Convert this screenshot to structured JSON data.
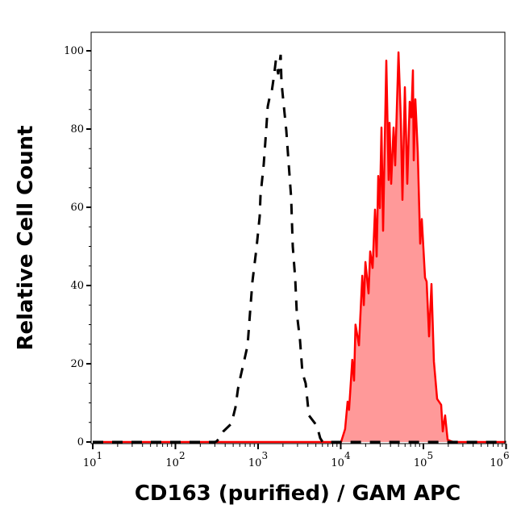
{
  "chart_data": {
    "type": "area",
    "title": "",
    "xlabel": "CD163 (purified) / GAM APC",
    "ylabel": "Relative Cell Count",
    "x_scale": "log",
    "xlim": [
      10,
      1000000
    ],
    "ylim": [
      0,
      105
    ],
    "x_ticks": [
      {
        "base": "10",
        "exp": "1"
      },
      {
        "base": "10",
        "exp": "2"
      },
      {
        "base": "10",
        "exp": "3"
      },
      {
        "base": "10",
        "exp": "4"
      },
      {
        "base": "10",
        "exp": "5"
      },
      {
        "base": "10",
        "exp": "6"
      }
    ],
    "y_ticks": [
      "0",
      "20",
      "40",
      "60",
      "80",
      "100"
    ],
    "grid": false,
    "series": [
      {
        "style": "dashed-line",
        "color": "#000000",
        "x": [
          10,
          300,
          318,
          380,
          476,
          533,
          571,
          610,
          682,
          747,
          798,
          855,
          955,
          1047,
          1070,
          1170,
          1253,
          1310,
          1371,
          1466,
          1567,
          1641,
          1754,
          1875,
          1918,
          2005,
          2193,
          2350,
          2512,
          2630,
          2812,
          2938,
          3214,
          3443,
          3767,
          4121,
          5152,
          5636,
          6026,
          7000,
          1000000
        ],
        "y": [
          0,
          0,
          0.2,
          2.7,
          4.7,
          8.9,
          13.6,
          16.5,
          21,
          24.7,
          33,
          41,
          49.5,
          57.7,
          63,
          71,
          79.6,
          85.8,
          87.8,
          89.7,
          94,
          97.5,
          94,
          99,
          92,
          87.8,
          79.6,
          71,
          62.5,
          50,
          41.9,
          33,
          26,
          17.7,
          15,
          6.8,
          4.1,
          1,
          0,
          0,
          0
        ]
      },
      {
        "style": "filled-area",
        "color": "#ff0000",
        "fill": "#ff9999",
        "x": [
          10,
          9800,
          10100,
          11300,
          12100,
          12600,
          13800,
          14500,
          15100,
          16600,
          18200,
          19000,
          19900,
          21700,
          22700,
          24300,
          26000,
          27200,
          28400,
          29700,
          31100,
          32500,
          35600,
          38000,
          38900,
          40700,
          43600,
          45600,
          49900,
          53300,
          55700,
          59700,
          63800,
          68200,
          71400,
          74600,
          76400,
          79800,
          85500,
          91400,
          95500,
          104700,
          109400,
          117000,
          125300,
          134000,
          146600,
          164100,
          171400,
          183200,
          196300,
          214800,
          230000,
          1000000
        ],
        "y": [
          0,
          0,
          0,
          3.3,
          10.3,
          8.2,
          21,
          15.7,
          30,
          24.7,
          42.5,
          35,
          46,
          38,
          48.7,
          44.5,
          59.4,
          47.4,
          68,
          59.8,
          80.4,
          54,
          97.5,
          67,
          81.6,
          66,
          80.4,
          70.7,
          99.6,
          82.5,
          61.9,
          90.7,
          66,
          87,
          83,
          95,
          72,
          87.6,
          74,
          50.7,
          57,
          42,
          41,
          27,
          40.4,
          20.6,
          11,
          9.5,
          2.7,
          6.8,
          0.6,
          0.2,
          0,
          0
        ]
      }
    ]
  }
}
